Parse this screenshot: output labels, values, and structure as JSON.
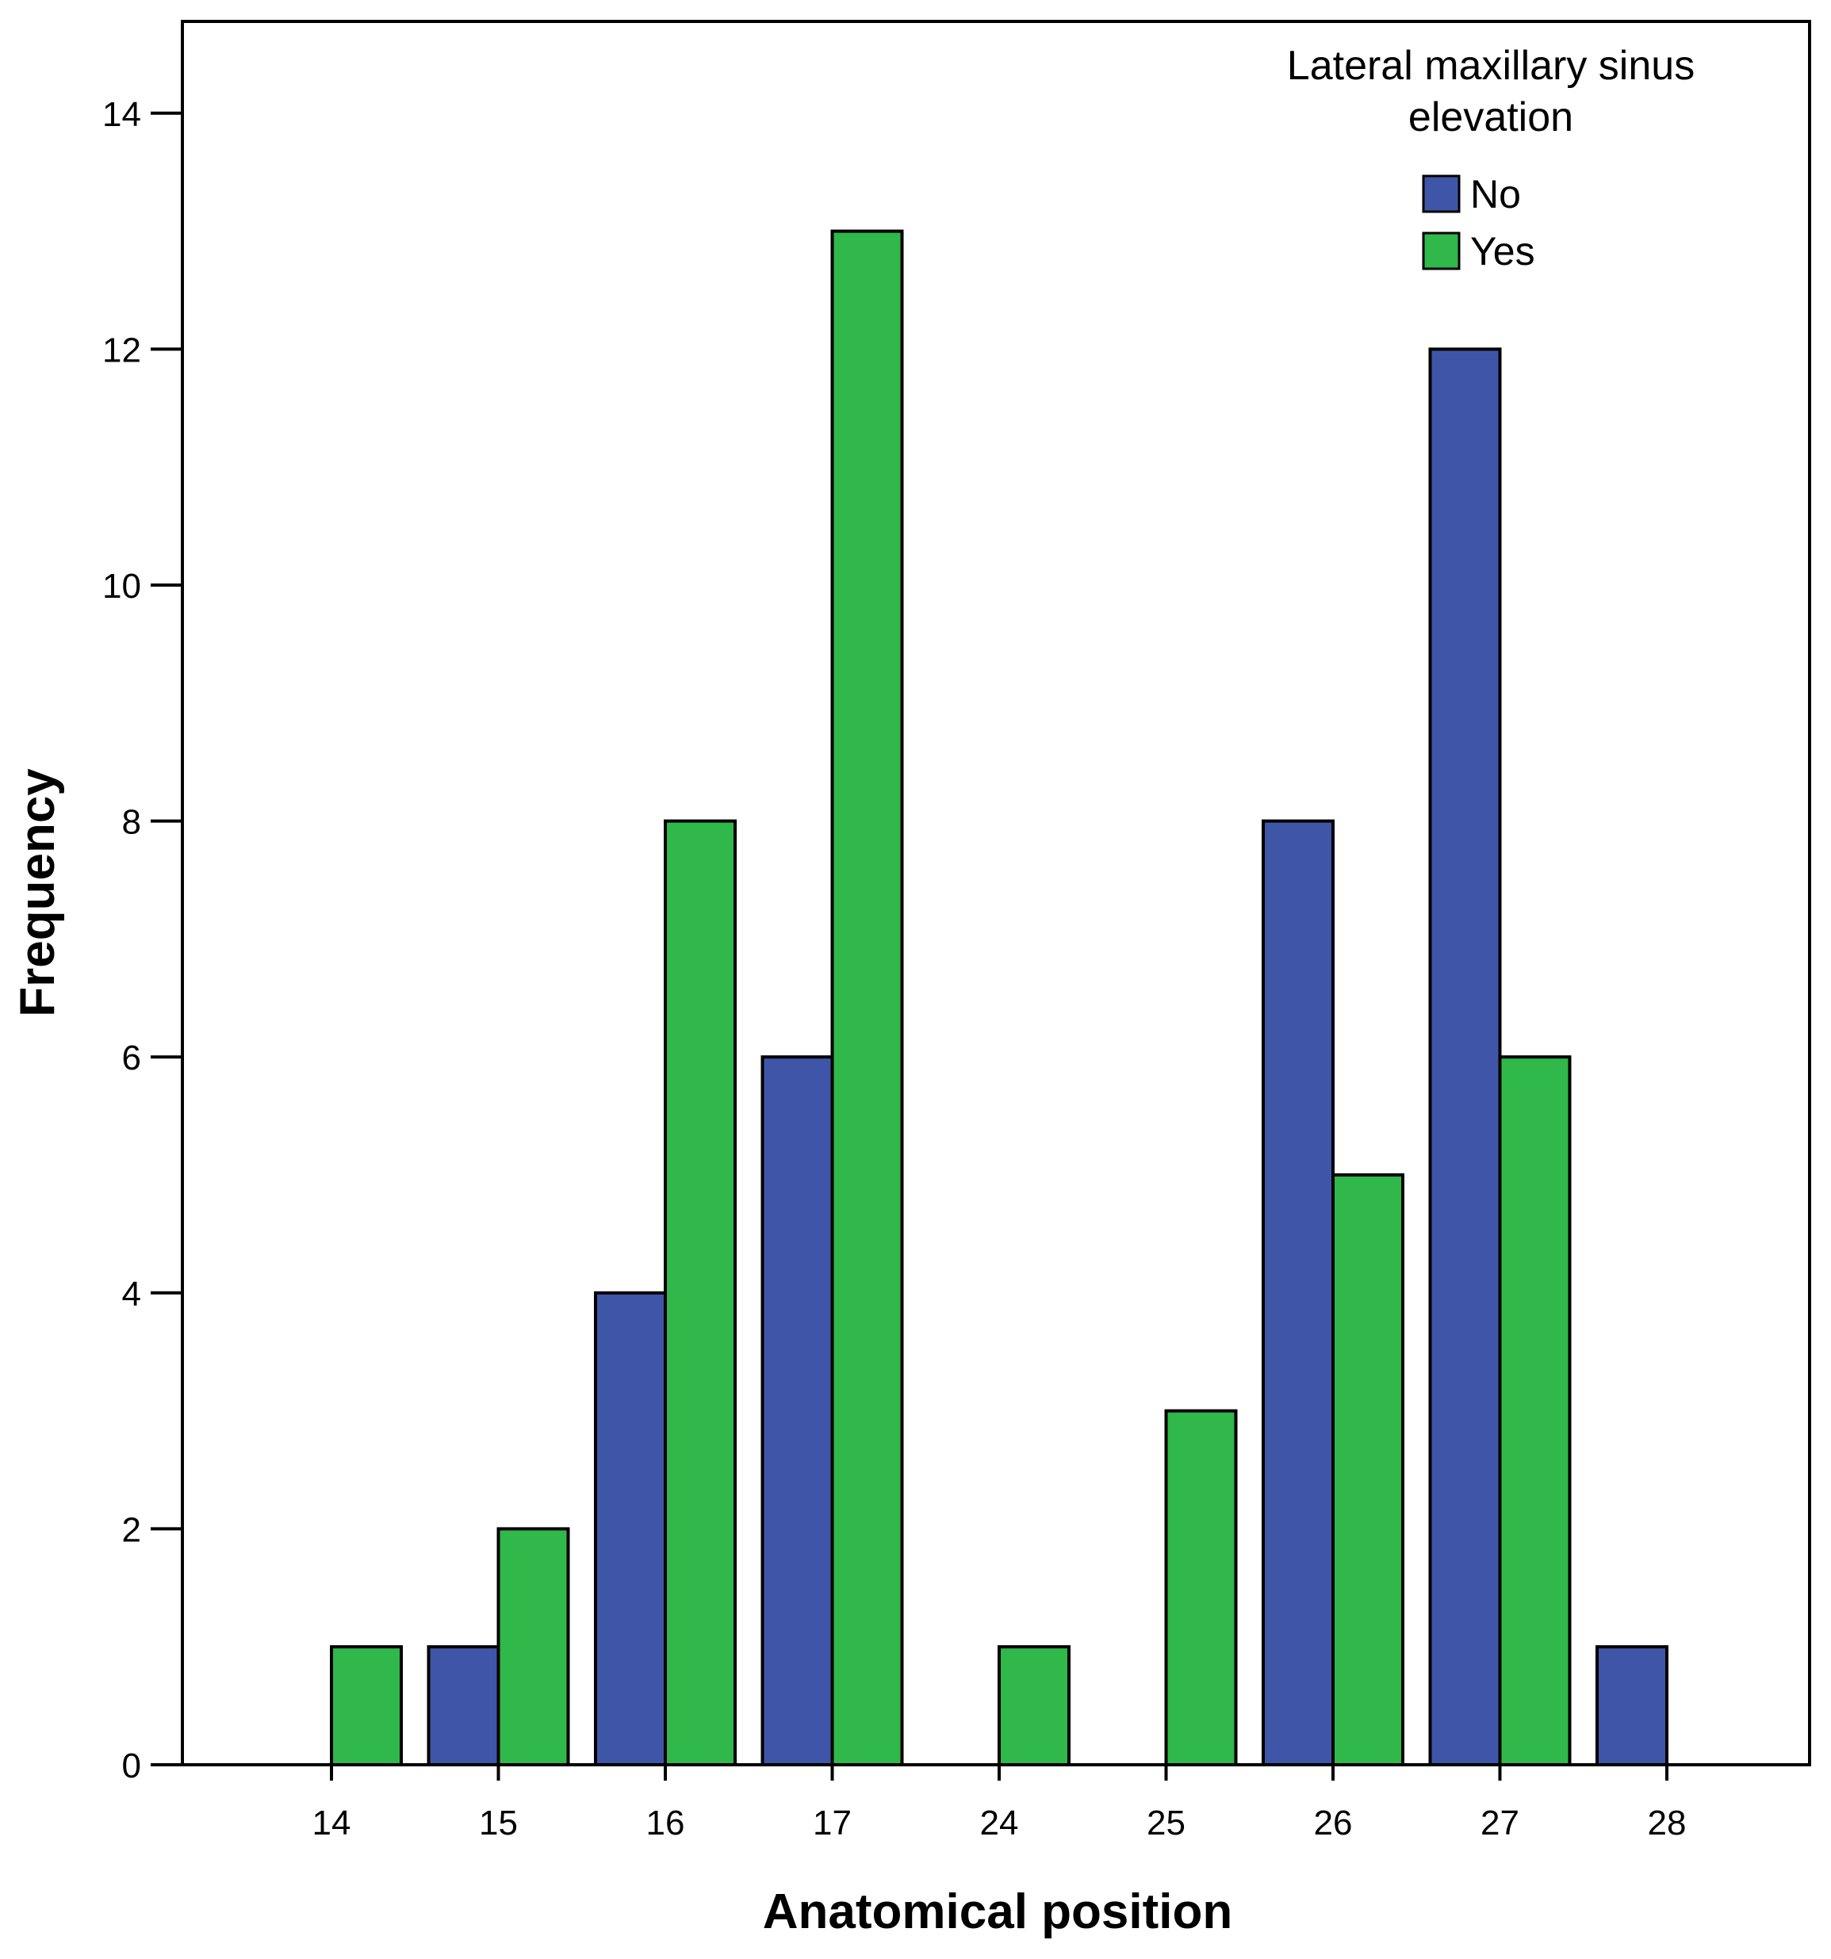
{
  "chart_data": {
    "type": "bar",
    "title": "",
    "xlabel": "Anatomical position",
    "ylabel": "Frequency",
    "ylim": [
      0,
      14.7
    ],
    "yticks": [
      0,
      2,
      4,
      6,
      8,
      10,
      12,
      14
    ],
    "grid": false,
    "categories": [
      "14",
      "15",
      "16",
      "17",
      "24",
      "25",
      "26",
      "27",
      "28"
    ],
    "series": [
      {
        "name": "No",
        "color": "#3f56a8",
        "values": [
          0,
          1,
          4,
          6,
          0,
          0,
          8,
          12,
          1
        ]
      },
      {
        "name": "Yes",
        "color": "#30b84a",
        "values": [
          1,
          2,
          8,
          13,
          1,
          3,
          5,
          6,
          0
        ]
      }
    ],
    "legend": {
      "title_lines": [
        "Lateral maxillary sinus",
        "elevation"
      ],
      "placement": "top-right"
    }
  }
}
